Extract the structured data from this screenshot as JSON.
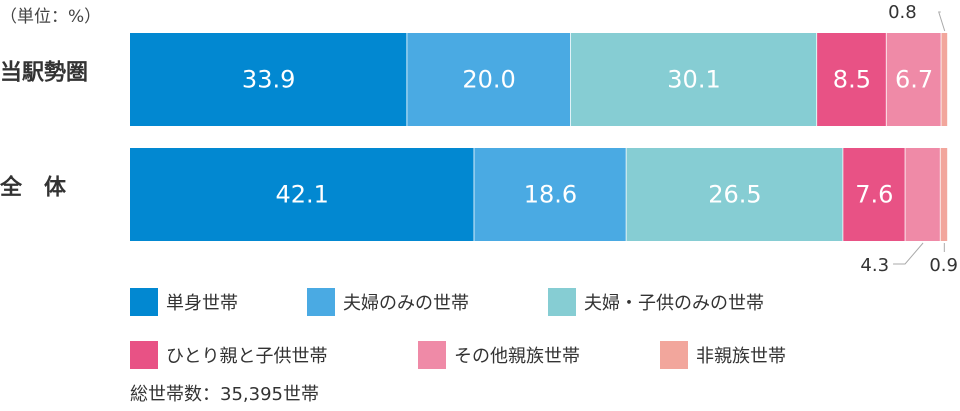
{
  "unit_label": "（単位：%）",
  "total_label": "総世帯数：35,395世帯",
  "chart_data": {
    "type": "bar",
    "stacked": true,
    "orientation": "horizontal",
    "categories": [
      "当駅勢圏",
      "全　体"
    ],
    "series": [
      {
        "name": "単身世帯",
        "color": "#0288d1",
        "values": [
          33.9,
          42.1
        ]
      },
      {
        "name": "夫婦のみの世帯",
        "color": "#4aaae3",
        "values": [
          20.0,
          18.6
        ]
      },
      {
        "name": "夫婦・子供のみの世帯",
        "color": "#86cdd3",
        "values": [
          30.1,
          26.5
        ]
      },
      {
        "name": "ひとり親と子供世帯",
        "color": "#e85285",
        "values": [
          8.5,
          7.6
        ]
      },
      {
        "name": "その他親族世帯",
        "color": "#ef8aa7",
        "values": [
          6.7,
          4.3
        ]
      },
      {
        "name": "非親族世帯",
        "color": "#f2a69c",
        "values": [
          0.8,
          0.9
        ]
      }
    ],
    "value_labels": [
      [
        "33.9",
        "20.0",
        "30.1",
        "8.5",
        "6.7",
        "0.8"
      ],
      [
        "42.1",
        "18.6",
        "26.5",
        "7.6",
        "4.3",
        "0.9"
      ]
    ],
    "xlim": [
      0,
      100
    ],
    "legend": "bottom"
  }
}
